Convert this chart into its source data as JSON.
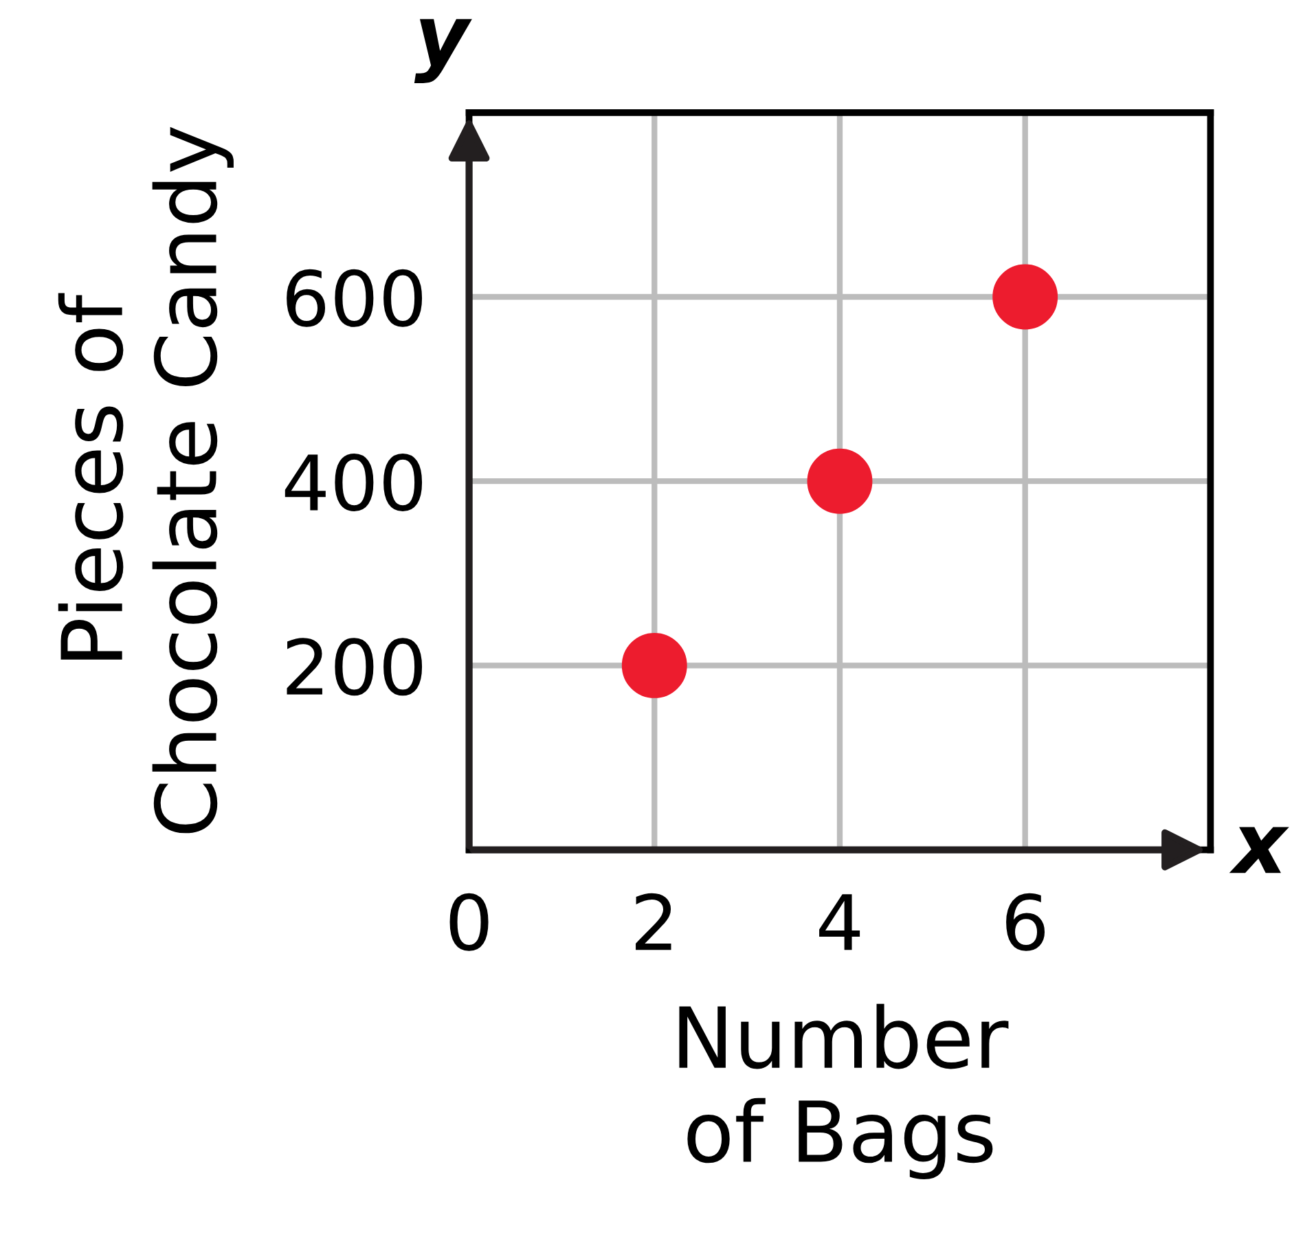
{
  "chart_data": {
    "type": "scatter",
    "xlabel": "Number\nof Bags",
    "ylabel": "Pieces of\nChocolate Candy",
    "annotations": [
      "y",
      "x"
    ],
    "x": [
      2,
      4,
      6
    ],
    "values": [
      200,
      400,
      600
    ],
    "color": "#ed1c2e",
    "marker": "circle",
    "xlim": [
      0,
      8
    ],
    "ylim": [
      0,
      800
    ],
    "xticks": [
      0,
      2,
      4,
      6
    ],
    "yticks": [
      200,
      400,
      600
    ],
    "grid": true
  }
}
